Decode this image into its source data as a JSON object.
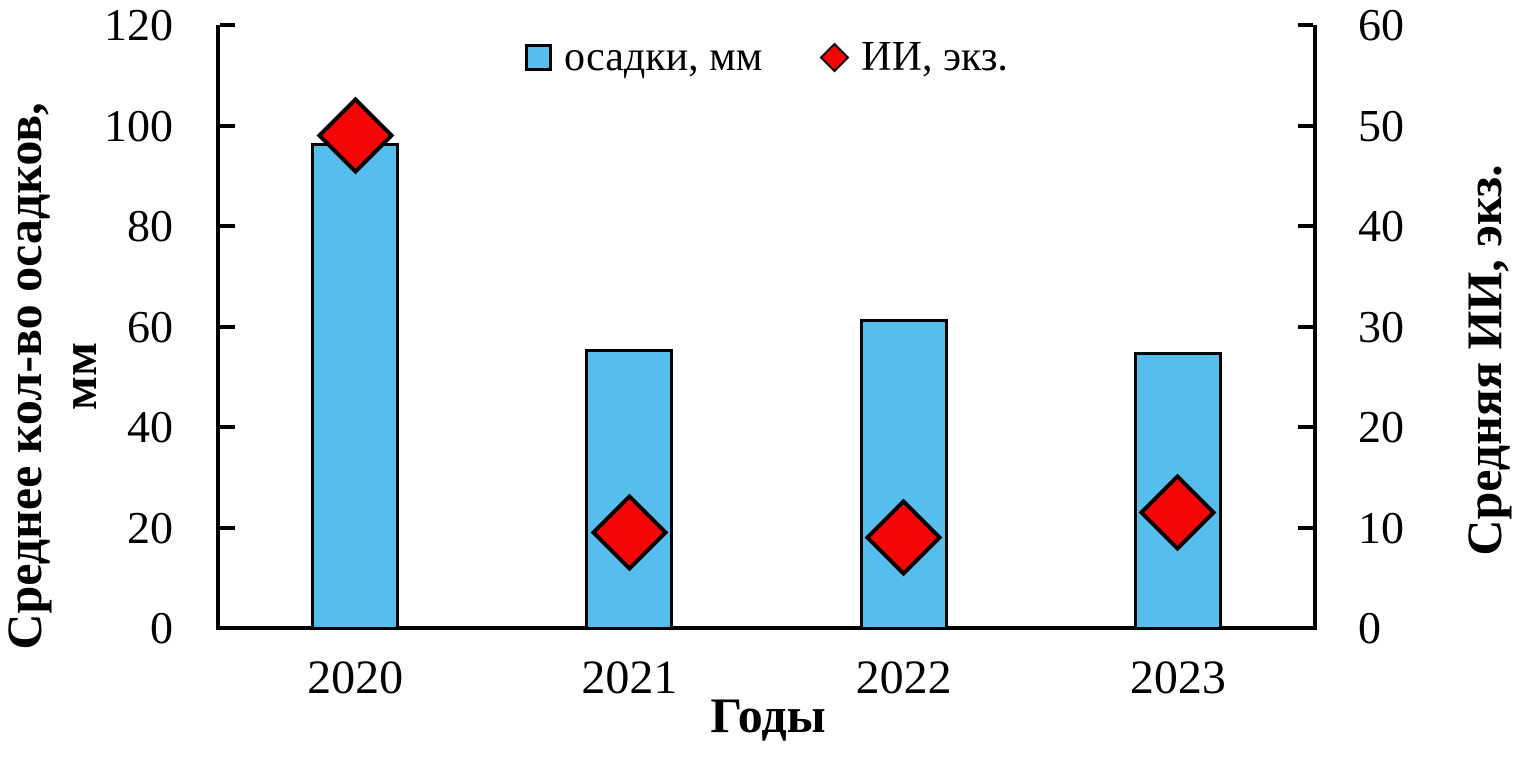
{
  "chart_data": {
    "type": "bar",
    "title": "",
    "categories": [
      "2020",
      "2021",
      "2022",
      "2023"
    ],
    "series": [
      {
        "name": "осадки, мм",
        "type": "bar",
        "axis": "left",
        "color": "#56BEEC",
        "values": [
          96.5,
          55.5,
          61.5,
          55
        ]
      },
      {
        "name": "ИИ, экз.",
        "type": "scatter",
        "marker": "diamond",
        "axis": "right",
        "color": "#F50505",
        "values": [
          49,
          9.5,
          9,
          11.5
        ]
      }
    ],
    "xlabel": "Годы",
    "ylabel_left": "Среднее кол-во осадков, мм",
    "ylabel_left_lines": [
      "Среднее кол-во осадков,",
      "мм"
    ],
    "ylabel_right": "Средняя ИИ, экз.",
    "axis_left": {
      "min": 0,
      "max": 120,
      "ticks": [
        0,
        20,
        40,
        60,
        80,
        100,
        120
      ]
    },
    "axis_right": {
      "min": 0,
      "max": 60,
      "ticks": [
        0,
        10,
        20,
        30,
        40,
        50,
        60
      ]
    },
    "grid": false,
    "legend_position": "top-center"
  },
  "colors": {
    "bar_fill": "#56BEEC",
    "marker_fill": "#F50505",
    "outline": "#000000",
    "axis": "#000000",
    "background": "#FFFFFF"
  }
}
